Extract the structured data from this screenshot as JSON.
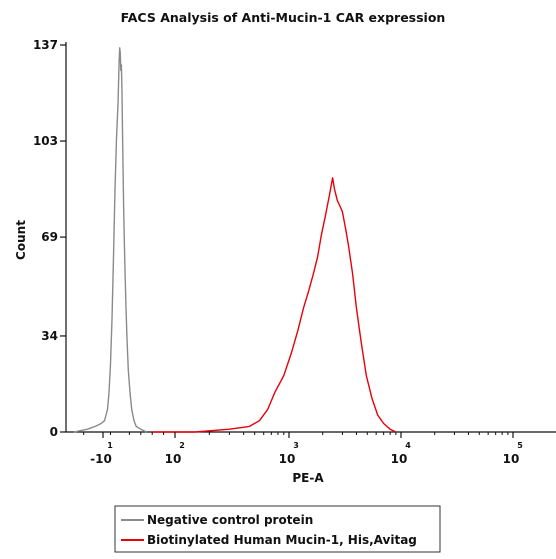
{
  "chart_data": {
    "type": "line",
    "title": "FACS Analysis of Anti-Mucin-1 CAR expression",
    "xlabel": "PE-A",
    "ylabel": "Count",
    "x_scale": "biexponential",
    "xlim": [
      -15,
      250000
    ],
    "ylim": [
      0,
      137
    ],
    "x_ticks": [
      {
        "value": -10,
        "base": "-10",
        "exp": "1"
      },
      {
        "value": 100,
        "base": "10",
        "exp": "2"
      },
      {
        "value": 1000,
        "base": "10",
        "exp": "3"
      },
      {
        "value": 10000,
        "base": "10",
        "exp": "4"
      },
      {
        "value": 100000,
        "base": "10",
        "exp": "5"
      }
    ],
    "y_ticks": [
      0,
      34,
      69,
      103,
      137
    ],
    "grid": false,
    "legend_position": "bottom-center",
    "series": [
      {
        "name": "Negative control protein",
        "color": "#8a8a8a",
        "points": [
          [
            -25,
            0
          ],
          [
            -18,
            1
          ],
          [
            -14,
            2
          ],
          [
            -11,
            3
          ],
          [
            -9,
            4
          ],
          [
            -7,
            8
          ],
          [
            -6,
            14
          ],
          [
            -5,
            24
          ],
          [
            -4,
            40
          ],
          [
            -3,
            62
          ],
          [
            -2,
            86
          ],
          [
            -1,
            104
          ],
          [
            0,
            116
          ],
          [
            1,
            124
          ],
          [
            2,
            131
          ],
          [
            3,
            136
          ],
          [
            4,
            134
          ],
          [
            5,
            128
          ],
          [
            6,
            130
          ],
          [
            7,
            120
          ],
          [
            8,
            104
          ],
          [
            9,
            92
          ],
          [
            10,
            78
          ],
          [
            12,
            60
          ],
          [
            14,
            44
          ],
          [
            16,
            32
          ],
          [
            18,
            22
          ],
          [
            21,
            14
          ],
          [
            24,
            8
          ],
          [
            28,
            4
          ],
          [
            32,
            2
          ],
          [
            40,
            1
          ],
          [
            50,
            0
          ]
        ]
      },
      {
        "name": "Biotinylated Human Mucin-1, His,Avitag",
        "color": "#e8000b",
        "points": [
          [
            60,
            0
          ],
          [
            150,
            0
          ],
          [
            300,
            1
          ],
          [
            450,
            2
          ],
          [
            550,
            4
          ],
          [
            650,
            8
          ],
          [
            750,
            14
          ],
          [
            900,
            20
          ],
          [
            1050,
            28
          ],
          [
            1200,
            36
          ],
          [
            1350,
            44
          ],
          [
            1500,
            50
          ],
          [
            1650,
            56
          ],
          [
            1800,
            62
          ],
          [
            1950,
            70
          ],
          [
            2100,
            76
          ],
          [
            2300,
            84
          ],
          [
            2450,
            90
          ],
          [
            2550,
            86
          ],
          [
            2700,
            82
          ],
          [
            2850,
            80
          ],
          [
            3000,
            78
          ],
          [
            3200,
            72
          ],
          [
            3400,
            66
          ],
          [
            3700,
            56
          ],
          [
            4000,
            44
          ],
          [
            4400,
            32
          ],
          [
            4900,
            20
          ],
          [
            5500,
            12
          ],
          [
            6200,
            6
          ],
          [
            7000,
            3
          ],
          [
            8000,
            1
          ],
          [
            9000,
            0
          ]
        ]
      }
    ]
  }
}
